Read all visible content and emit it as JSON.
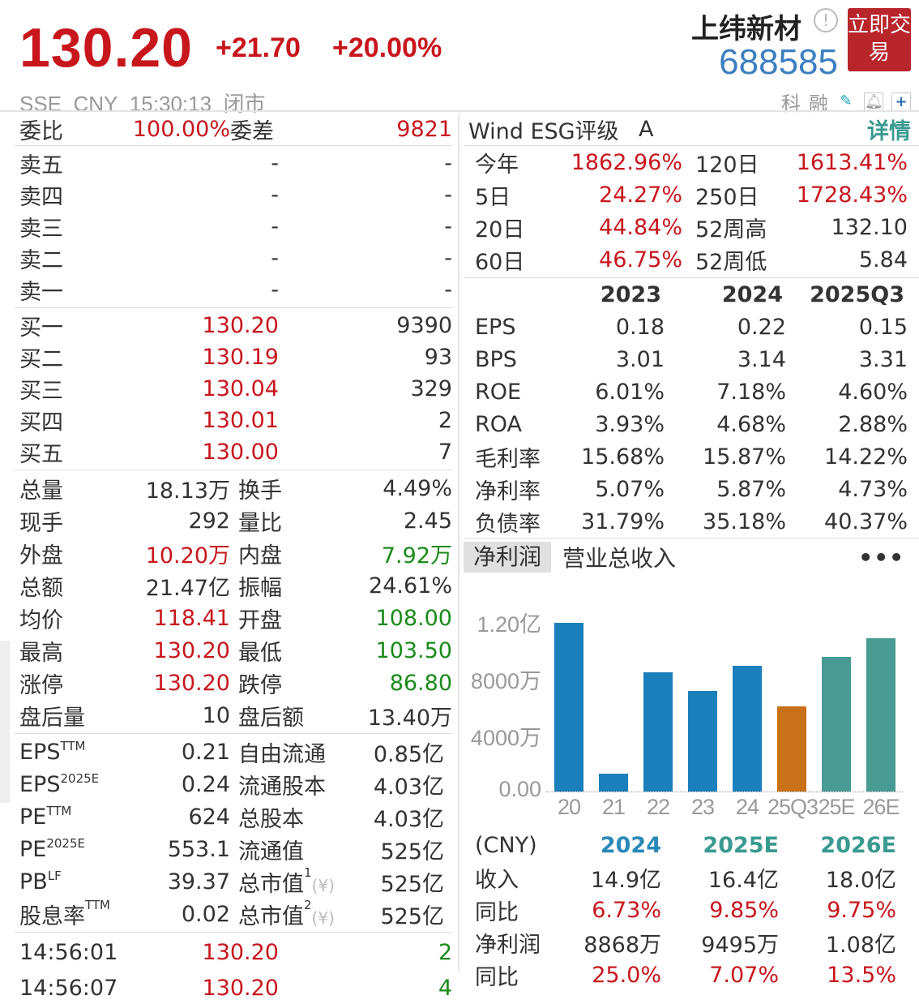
{
  "header": {
    "price": "130.20",
    "change": "+21.70",
    "change_pct": "+20.00%",
    "name": "上纬新材",
    "code": "688585",
    "trade_button": "立即交易",
    "exchange": "SSE",
    "currency": "CNY",
    "time": "15:30:13",
    "status": "闭市",
    "tags": [
      "科",
      "融"
    ]
  },
  "order": {
    "wei_bi_label": "委比",
    "wei_bi": "100.00%",
    "wei_cha_label": "委差",
    "wei_cha": "9821",
    "sell": [
      {
        "label": "卖五",
        "price": "-",
        "vol": "-"
      },
      {
        "label": "卖四",
        "price": "-",
        "vol": "-"
      },
      {
        "label": "卖三",
        "price": "-",
        "vol": "-"
      },
      {
        "label": "卖二",
        "price": "-",
        "vol": "-"
      },
      {
        "label": "卖一",
        "price": "-",
        "vol": "-"
      }
    ],
    "buy": [
      {
        "label": "买一",
        "price": "130.20",
        "vol": "9390"
      },
      {
        "label": "买二",
        "price": "130.19",
        "vol": "93"
      },
      {
        "label": "买三",
        "price": "130.04",
        "vol": "329"
      },
      {
        "label": "买四",
        "price": "130.01",
        "vol": "2"
      },
      {
        "label": "买五",
        "price": "130.00",
        "vol": "7"
      }
    ]
  },
  "stats": [
    {
      "l1": "总量",
      "v1": "18.13万",
      "c1": "",
      "l2": "换手",
      "v2": "4.49%",
      "c2": ""
    },
    {
      "l1": "现手",
      "v1": "292",
      "c1": "",
      "l2": "量比",
      "v2": "2.45",
      "c2": ""
    },
    {
      "l1": "外盘",
      "v1": "10.20万",
      "c1": "red",
      "l2": "内盘",
      "v2": "7.92万",
      "c2": "green"
    },
    {
      "l1": "总额",
      "v1": "21.47亿",
      "c1": "",
      "l2": "振幅",
      "v2": "24.61%",
      "c2": ""
    },
    {
      "l1": "均价",
      "v1": "118.41",
      "c1": "red",
      "l2": "开盘",
      "v2": "108.00",
      "c2": "green"
    },
    {
      "l1": "最高",
      "v1": "130.20",
      "c1": "red",
      "l2": "最低",
      "v2": "103.50",
      "c2": "green"
    },
    {
      "l1": "涨停",
      "v1": "130.20",
      "c1": "red",
      "l2": "跌停",
      "v2": "86.80",
      "c2": "green"
    },
    {
      "l1": "盘后量",
      "v1": "10",
      "c1": "",
      "l2": "盘后额",
      "v2": "13.40万",
      "c2": ""
    }
  ],
  "valuation": [
    {
      "l1": "EPS",
      "s1": "TTM",
      "v1": "0.21",
      "l2": "自由流通",
      "s2": "",
      "v2": "0.85亿"
    },
    {
      "l1": "EPS",
      "s1": "2025E",
      "v1": "0.24",
      "l2": "流通股本",
      "s2": "",
      "v2": "4.03亿"
    },
    {
      "l1": "PE",
      "s1": "TTM",
      "v1": "624",
      "l2": "总股本",
      "s2": "",
      "v2": "4.03亿"
    },
    {
      "l1": "PE",
      "s1": "2025E",
      "v1": "553.1",
      "l2": "流通值",
      "s2": "",
      "v2": "525亿"
    },
    {
      "l1": "PB",
      "s1": "LF",
      "v1": "39.37",
      "l2": "总市值",
      "s2": "1",
      "v2": "525亿"
    },
    {
      "l1": "股息率",
      "s1": "TTM",
      "v1": "0.02",
      "l2": "总市值",
      "s2": "2",
      "v2": "525亿"
    }
  ],
  "ticks": [
    {
      "time": "14:56:01",
      "price": "130.20",
      "vol": "2"
    },
    {
      "time": "14:56:07",
      "price": "130.20",
      "vol": "4"
    }
  ],
  "esg": {
    "label": "Wind ESG评级",
    "grade": "A",
    "detail": "详情"
  },
  "returns": [
    {
      "l1": "今年",
      "v1": "1862.96%",
      "l2": "120日",
      "v2": "1613.41%",
      "c2": "red"
    },
    {
      "l1": "5日",
      "v1": "24.27%",
      "l2": "250日",
      "v2": "1728.43%",
      "c2": "red"
    },
    {
      "l1": "20日",
      "v1": "44.84%",
      "l2": "52周高",
      "v2": "132.10",
      "c2": ""
    },
    {
      "l1": "60日",
      "v1": "46.75%",
      "l2": "52周低",
      "v2": "5.84",
      "c2": ""
    }
  ],
  "fin": {
    "years": [
      "2023",
      "2024",
      "2025Q3"
    ],
    "rows": [
      {
        "label": "EPS",
        "vals": [
          "0.18",
          "0.22",
          "0.15"
        ]
      },
      {
        "label": "BPS",
        "vals": [
          "3.01",
          "3.14",
          "3.31"
        ]
      },
      {
        "label": "ROE",
        "vals": [
          "6.01%",
          "7.18%",
          "4.60%"
        ]
      },
      {
        "label": "ROA",
        "vals": [
          "3.93%",
          "4.68%",
          "2.88%"
        ]
      },
      {
        "label": "毛利率",
        "vals": [
          "15.68%",
          "15.87%",
          "14.22%"
        ]
      },
      {
        "label": "净利率",
        "vals": [
          "5.07%",
          "5.87%",
          "4.73%"
        ]
      },
      {
        "label": "负债率",
        "vals": [
          "31.79%",
          "35.18%",
          "40.37%"
        ]
      }
    ]
  },
  "chart_tabs": [
    "净利润",
    "营业总收入"
  ],
  "chart_data": {
    "type": "bar",
    "categories": [
      "20",
      "21",
      "22",
      "23",
      "24",
      "25Q3",
      "25E",
      "26E"
    ],
    "values": [
      11900,
      1260,
      8400,
      7100,
      8868,
      6000,
      9495,
      10800
    ],
    "unit": "万",
    "ytick_labels": [
      "0.00",
      "4000万",
      "8000万",
      "1.20亿"
    ],
    "yticks": [
      0,
      4000,
      8000,
      12000
    ],
    "ylim": [
      0,
      12000
    ],
    "colors": [
      "#1a7fba",
      "#1a7fba",
      "#1a7fba",
      "#1a7fba",
      "#1a7fba",
      "#c8701a",
      "#4a9a94",
      "#4a9a94"
    ]
  },
  "forecast": {
    "unit": "(CNY)",
    "years": [
      "2024",
      "2025E",
      "2026E"
    ],
    "rows": [
      {
        "label": "收入",
        "vals": [
          "14.9亿",
          "16.4亿",
          "18.0亿"
        ],
        "color": ""
      },
      {
        "label": "同比",
        "vals": [
          "6.73%",
          "9.85%",
          "9.75%"
        ],
        "color": "red"
      },
      {
        "label": "净利润",
        "vals": [
          "8868万",
          "9495万",
          "1.08亿"
        ],
        "color": ""
      },
      {
        "label": "同比",
        "vals": [
          "25.0%",
          "7.07%",
          "13.5%"
        ],
        "color": "red"
      }
    ]
  }
}
